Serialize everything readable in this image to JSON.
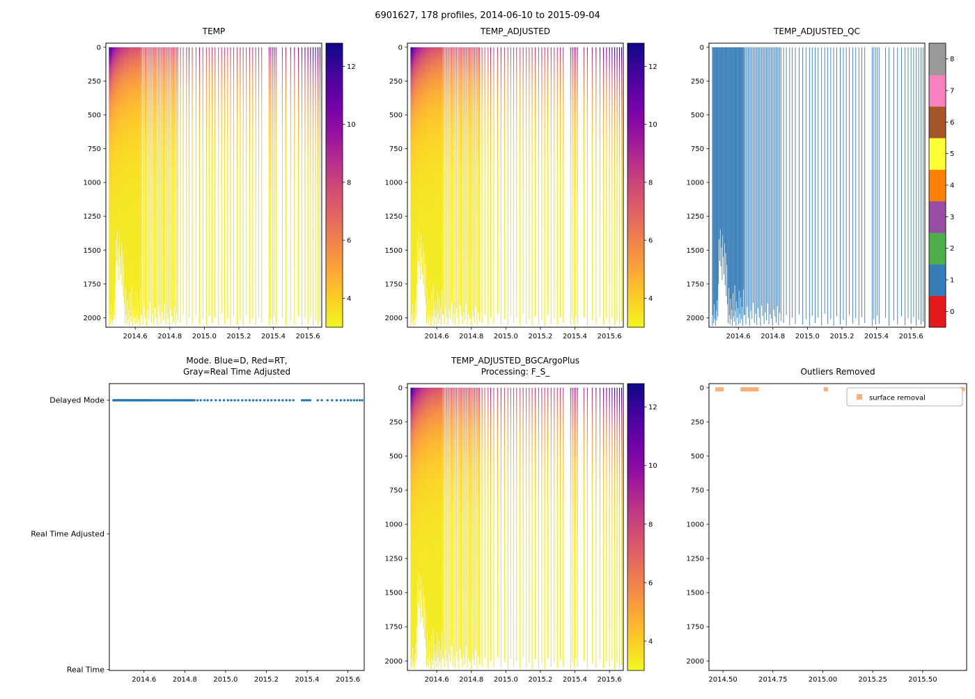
{
  "figure": {
    "suptitle": "6901627, 178 profiles, 2014-06-10 to 2015-09-04",
    "background": "#ffffff"
  },
  "colors": {
    "axis": "#000000",
    "qc_line": "#377eb8",
    "mode_marker": "#1f77b4",
    "outlier_marker": "#f4a460"
  },
  "colormap": {
    "name": "plasma_r",
    "vmin": 3.0,
    "vmax": 12.8,
    "stops": [
      [
        0.0,
        "#0d0887"
      ],
      [
        0.1,
        "#41049d"
      ],
      [
        0.2,
        "#6a00a8"
      ],
      [
        0.3,
        "#8f0da4"
      ],
      [
        0.4,
        "#b12a90"
      ],
      [
        0.5,
        "#cc4778"
      ],
      [
        0.6,
        "#e16462"
      ],
      [
        0.7,
        "#f1844b"
      ],
      [
        0.8,
        "#fca636"
      ],
      [
        0.9,
        "#fcce25"
      ],
      [
        1.0,
        "#f0f921"
      ]
    ]
  },
  "qc_colors": [
    "#e41a1c",
    "#377eb8",
    "#4daf4a",
    "#984ea3",
    "#ff7f00",
    "#ffff33",
    "#a65628",
    "#f781bf",
    "#999999"
  ],
  "profile_model": {
    "deep_temp": 3.3,
    "efolding_m": 320
  },
  "profiles": {
    "dense": {
      "t0": 2014.45,
      "dt": 0.0035,
      "surf": [
        12.6,
        12.2,
        11.8,
        11.3,
        10.9,
        10.5,
        10.2,
        10.0,
        9.8,
        9.9,
        9.6,
        9.4,
        9.5,
        9.2,
        9.0,
        9.1,
        8.8,
        8.9,
        8.6,
        8.7,
        8.5,
        8.4,
        8.5,
        8.3,
        8.2,
        8.3,
        8.1,
        8.0,
        8.1,
        7.9,
        8.0,
        7.8,
        7.9,
        7.7,
        7.8,
        7.6,
        7.7,
        7.8,
        7.6,
        7.5,
        7.6,
        7.7,
        7.5,
        7.6,
        7.4,
        7.5,
        7.6,
        7.4,
        7.5,
        7.3,
        7.4,
        7.5,
        7.3
      ],
      "depth": [
        2060,
        1980,
        2040,
        1900,
        2010,
        2060,
        1950,
        2020,
        1870,
        1990,
        1750,
        1420,
        1580,
        1350,
        1620,
        1480,
        1720,
        1390,
        1550,
        1680,
        1450,
        1760,
        1520,
        1840,
        1610,
        1900,
        2040,
        1780,
        1980,
        2050,
        1860,
        2010,
        1940,
        2060,
        1820,
        1990,
        2030,
        1760,
        1950,
        2060,
        1880,
        2000,
        1930,
        2050,
        1800,
        1970,
        2040,
        1850,
        2010,
        1920,
        2060,
        1790,
        1980
      ]
    },
    "medium": {
      "t0": 2014.637,
      "dt": 0.007,
      "surf": [
        7.4,
        7.8,
        7.2,
        7.9,
        7.5,
        8.0,
        7.3,
        7.7,
        7.6,
        8.1,
        7.4,
        7.8,
        7.2,
        7.6,
        7.9,
        7.3,
        7.7,
        8.0,
        7.5,
        7.8,
        7.4,
        7.9,
        7.6,
        7.2,
        7.7,
        7.5,
        8.0,
        7.4,
        7.8,
        7.6,
        7.9
      ],
      "depth": [
        1980,
        2050,
        1920,
        2000,
        2060,
        1950,
        2010,
        1890,
        2040,
        1970,
        2055,
        1930,
        2000,
        2060,
        1910,
        1985,
        2045,
        1960,
        2020,
        1895,
        2050,
        1975,
        2005,
        2060,
        1940,
        1990,
        2035,
        1915,
        2055,
        1965,
        2025
      ]
    },
    "sparse": [
      [
        2014.862,
        8.0,
        2040
      ],
      [
        2014.878,
        7.7,
        1980
      ],
      [
        2014.897,
        8.2,
        2055
      ],
      [
        2014.912,
        9.6,
        2000
      ],
      [
        2014.93,
        7.9,
        2045
      ],
      [
        2014.952,
        8.1,
        1975
      ],
      [
        2014.972,
        9.8,
        2050
      ],
      [
        2014.992,
        8.3,
        2010
      ],
      [
        2015.012,
        8.0,
        2060
      ],
      [
        2015.028,
        7.8,
        1985
      ],
      [
        2015.045,
        8.4,
        2040
      ],
      [
        2015.062,
        8.1,
        2000
      ],
      [
        2015.082,
        7.9,
        2055
      ],
      [
        2015.1,
        8.6,
        1970
      ],
      [
        2015.118,
        8.2,
        2045
      ],
      [
        2015.135,
        8.0,
        2010
      ],
      [
        2015.152,
        8.5,
        2060
      ],
      [
        2015.17,
        8.3,
        1990
      ],
      [
        2015.19,
        8.1,
        2050
      ],
      [
        2015.208,
        8.7,
        2015
      ],
      [
        2015.225,
        8.4,
        2060
      ],
      [
        2015.243,
        8.2,
        1980
      ],
      [
        2015.262,
        8.8,
        2045
      ],
      [
        2015.28,
        8.5,
        2005
      ],
      [
        2015.298,
        8.3,
        2055
      ],
      [
        2015.315,
        8.6,
        1995
      ],
      [
        2015.332,
        8.4,
        2040
      ],
      [
        2015.375,
        9.4,
        2060
      ],
      [
        2015.385,
        9.7,
        2010
      ],
      [
        2015.395,
        9.2,
        2050
      ],
      [
        2015.405,
        9.9,
        1985
      ],
      [
        2015.415,
        9.5,
        2045
      ],
      [
        2015.452,
        9.0,
        2000
      ],
      [
        2015.472,
        9.3,
        2060
      ],
      [
        2015.5,
        9.6,
        2020
      ],
      [
        2015.522,
        9.9,
        2050
      ],
      [
        2015.545,
        10.4,
        1990
      ],
      [
        2015.565,
        10.8,
        2055
      ],
      [
        2015.583,
        11.2,
        2005
      ],
      [
        2015.6,
        11.6,
        2045
      ],
      [
        2015.615,
        12.0,
        1995
      ],
      [
        2015.63,
        12.4,
        2060
      ],
      [
        2015.644,
        12.1,
        2015
      ],
      [
        2015.658,
        12.6,
        2050
      ],
      [
        2015.67,
        12.8,
        2030
      ]
    ]
  },
  "chart_data": [
    {
      "id": "temp",
      "type": "heatmap",
      "title": "TEMP",
      "xlabel": "",
      "ylabel": "",
      "xlim": [
        2014.43,
        2015.68
      ],
      "ylim": [
        2070,
        -30
      ],
      "x_tick_values": [
        2014.6,
        2014.8,
        2015.0,
        2015.2,
        2015.4,
        2015.6
      ],
      "x_tick_labels": [
        "2014.6",
        "2014.8",
        "2015.0",
        "2015.2",
        "2015.4",
        "2015.6"
      ],
      "y_tick_values": [
        0,
        250,
        500,
        750,
        1000,
        1250,
        1500,
        1750,
        2000
      ],
      "y_tick_labels": [
        "0",
        "250",
        "500",
        "750",
        "1000",
        "1250",
        "1500",
        "1750",
        "2000"
      ],
      "colorbar": {
        "vmin": 3.0,
        "vmax": 12.8,
        "tick_values": [
          4,
          6,
          8,
          10,
          12
        ],
        "tick_labels": [
          "4",
          "6",
          "8",
          "10",
          "12"
        ]
      },
      "source": "profiles",
      "value_field": "temperature"
    },
    {
      "id": "temp_adjusted",
      "type": "heatmap",
      "title": "TEMP_ADJUSTED",
      "xlabel": "",
      "ylabel": "",
      "xlim": [
        2014.43,
        2015.68
      ],
      "ylim": [
        2070,
        -30
      ],
      "x_tick_values": [
        2014.6,
        2014.8,
        2015.0,
        2015.2,
        2015.4,
        2015.6
      ],
      "x_tick_labels": [
        "2014.6",
        "2014.8",
        "2015.0",
        "2015.2",
        "2015.4",
        "2015.6"
      ],
      "y_tick_values": [
        0,
        250,
        500,
        750,
        1000,
        1250,
        1500,
        1750,
        2000
      ],
      "y_tick_labels": [
        "0",
        "250",
        "500",
        "750",
        "1000",
        "1250",
        "1500",
        "1750",
        "2000"
      ],
      "colorbar": {
        "vmin": 3.0,
        "vmax": 12.8,
        "tick_values": [
          4,
          6,
          8,
          10,
          12
        ],
        "tick_labels": [
          "4",
          "6",
          "8",
          "10",
          "12"
        ]
      },
      "source": "profiles",
      "value_field": "adjusted temperature"
    },
    {
      "id": "temp_adjusted_qc",
      "type": "heatmap",
      "title": "TEMP_ADJUSTED_QC",
      "xlabel": "",
      "ylabel": "",
      "xlim": [
        2014.43,
        2015.68
      ],
      "ylim": [
        2070,
        -30
      ],
      "x_tick_values": [
        2014.6,
        2014.8,
        2015.0,
        2015.2,
        2015.4,
        2015.6
      ],
      "x_tick_labels": [
        "2014.6",
        "2014.8",
        "2015.0",
        "2015.2",
        "2015.4",
        "2015.6"
      ],
      "y_tick_values": [
        0,
        250,
        500,
        750,
        1000,
        1250,
        1500,
        1750,
        2000
      ],
      "y_tick_labels": [
        "0",
        "250",
        "500",
        "750",
        "1000",
        "1250",
        "1500",
        "1750",
        "2000"
      ],
      "colorbar": {
        "discrete": true,
        "tick_values": [
          0,
          1,
          2,
          3,
          4,
          5,
          6,
          7,
          8
        ],
        "tick_labels": [
          "0",
          "1",
          "2",
          "3",
          "4",
          "5",
          "6",
          "7",
          "8"
        ]
      },
      "source": "profiles",
      "qc_value": 1
    },
    {
      "id": "mode",
      "type": "scatter",
      "title_lines": [
        "Mode. Blue=D, Red=RT,",
        "Gray=Real Time Adjusted"
      ],
      "xlim": [
        2014.43,
        2015.68
      ],
      "x_tick_values": [
        2014.6,
        2014.8,
        2015.0,
        2015.2,
        2015.4,
        2015.6
      ],
      "x_tick_labels": [
        "2014.6",
        "2014.8",
        "2015.0",
        "2015.2",
        "2015.4",
        "2015.6"
      ],
      "y_categories": [
        "Delayed Mode",
        "Real Time Adjusted",
        "Real Time"
      ],
      "value": "Delayed Mode",
      "source": "profiles"
    },
    {
      "id": "temp_adjusted_bgc",
      "type": "heatmap",
      "title_lines": [
        "TEMP_ADJUSTED_BGCArgoPlus",
        "Processing: F_S_"
      ],
      "xlim": [
        2014.43,
        2015.68
      ],
      "ylim": [
        2070,
        -30
      ],
      "x_tick_values": [
        2014.6,
        2014.8,
        2015.0,
        2015.2,
        2015.4,
        2015.6
      ],
      "x_tick_labels": [
        "2014.6",
        "2014.8",
        "2015.0",
        "2015.2",
        "2015.4",
        "2015.6"
      ],
      "y_tick_values": [
        0,
        250,
        500,
        750,
        1000,
        1250,
        1500,
        1750,
        2000
      ],
      "y_tick_labels": [
        "0",
        "250",
        "500",
        "750",
        "1000",
        "1250",
        "1500",
        "1750",
        "2000"
      ],
      "colorbar": {
        "vmin": 3.0,
        "vmax": 12.8,
        "tick_values": [
          4,
          6,
          8,
          10,
          12
        ],
        "tick_labels": [
          "4",
          "6",
          "8",
          "10",
          "12"
        ]
      },
      "source": "profiles",
      "value_field": "adjusted temperature"
    },
    {
      "id": "outliers_removed",
      "type": "scatter",
      "title": "Outliers Removed",
      "xlim": [
        2014.43,
        2015.72
      ],
      "ylim": [
        2070,
        -30
      ],
      "x_tick_values": [
        2014.5,
        2014.75,
        2015.0,
        2015.25,
        2015.5
      ],
      "x_tick_labels": [
        "2014.50",
        "2014.75",
        "2015.00",
        "2015.25",
        "2015.50"
      ],
      "y_tick_values": [
        0,
        250,
        500,
        750,
        1000,
        1250,
        1500,
        1750,
        2000
      ],
      "y_tick_labels": [
        "0",
        "250",
        "500",
        "750",
        "1000",
        "1250",
        "1500",
        "1750",
        "2000"
      ],
      "legend": {
        "label": "surface removal"
      },
      "points": [
        [
          2014.472,
          12
        ],
        [
          2014.492,
          12
        ],
        [
          2014.598,
          12
        ],
        [
          2014.615,
          12
        ],
        [
          2014.632,
          12
        ],
        [
          2014.65,
          12
        ],
        [
          2014.668,
          12
        ],
        [
          2015.015,
          12
        ],
        [
          2015.212,
          30
        ],
        [
          2015.7,
          10
        ]
      ]
    }
  ]
}
